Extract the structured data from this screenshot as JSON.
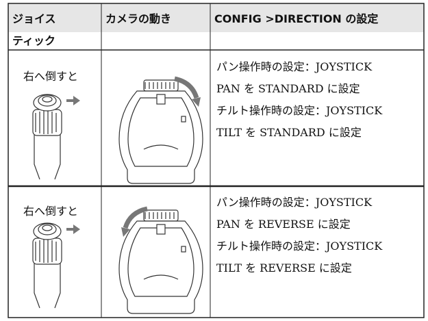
{
  "header": {
    "cells": [
      [
        "ジョイス",
        "ティック"
      ],
      [
        "カメラの動き"
      ],
      [
        "CONFIG >DIRECTION の設定"
      ]
    ]
  },
  "rows": [
    {
      "caption": "右へ倒すと",
      "lines": [
        "パン操作時の設定：JOYSTICK",
        "PAN を STANDARD に設定",
        "チルト操作時の設定：JOYSTICK",
        "TILT を STANDARD に設定"
      ]
    },
    {
      "caption": "右へ倒すと",
      "lines": [
        "パン操作時の設定：JOYSTICK",
        "PAN を REVERSE に設定",
        "チルト操作時の設定：JOYSTICK",
        "TILT を REVERSE に設定"
      ]
    }
  ]
}
